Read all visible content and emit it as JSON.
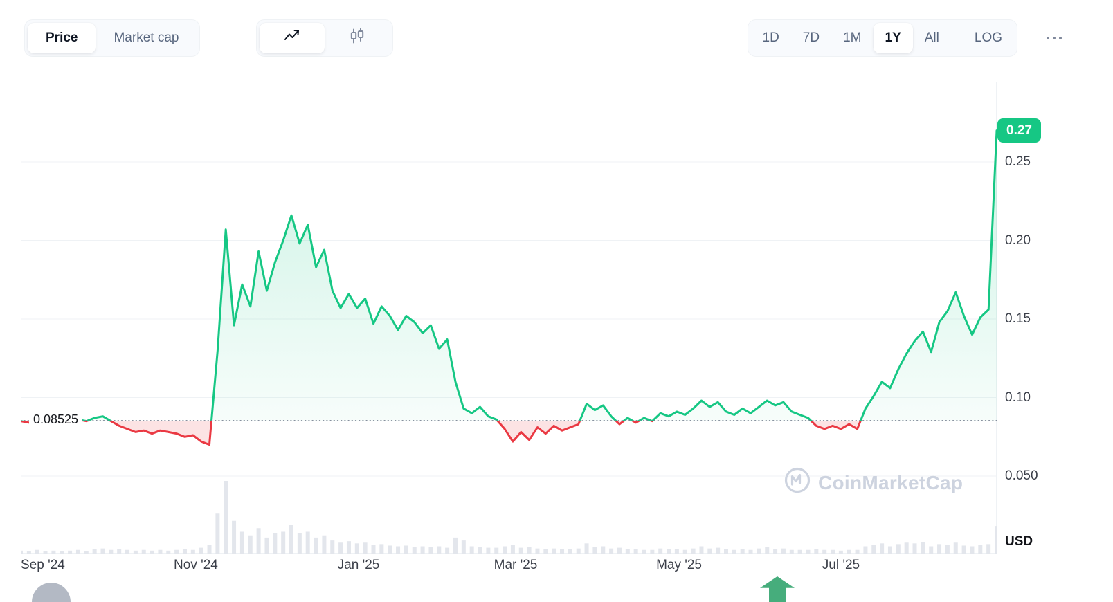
{
  "toolbar": {
    "metric_tabs": {
      "price": "Price",
      "market_cap": "Market cap"
    },
    "range_tabs": {
      "d1": "1D",
      "d7": "7D",
      "m1": "1M",
      "y1": "1Y",
      "all": "All",
      "log": "LOG"
    },
    "icons": {
      "chart_type_selected": "line-chart-icon",
      "chart_type_alt": "candlestick-icon",
      "more": "ellipsis-icon"
    }
  },
  "watermark": {
    "text": "CoinMarketCap"
  },
  "chart_data": {
    "type": "line",
    "unit_label": "USD",
    "current": {
      "label": "0.27",
      "value": 0.27
    },
    "baseline": {
      "label": "0.08525",
      "value": 0.08525
    },
    "ylim": [
      0.05,
      0.3
    ],
    "y_ticks": [
      {
        "label": "0.25",
        "value": 0.25
      },
      {
        "label": "0.20",
        "value": 0.2
      },
      {
        "label": "0.15",
        "value": 0.15
      },
      {
        "label": "0.10",
        "value": 0.1
      },
      {
        "label": "0.050",
        "value": 0.05
      }
    ],
    "x_ticks": [
      {
        "label": "Sep '24",
        "pos": 0
      },
      {
        "label": "Nov '24",
        "pos": 0.1794
      },
      {
        "label": "Jan '25",
        "pos": 0.3461
      },
      {
        "label": "Mar '25",
        "pos": 0.5071
      },
      {
        "label": "May '25",
        "pos": 0.6745
      },
      {
        "label": "Jul '25",
        "pos": 0.8404
      }
    ],
    "prices": [
      0.085,
      0.084,
      0.083,
      0.084,
      0.085,
      0.084,
      0.085,
      0.086,
      0.085,
      0.087,
      0.088,
      0.085,
      0.082,
      0.08,
      0.078,
      0.079,
      0.077,
      0.079,
      0.078,
      0.077,
      0.075,
      0.076,
      0.072,
      0.07,
      0.13,
      0.207,
      0.146,
      0.172,
      0.158,
      0.193,
      0.168,
      0.186,
      0.2,
      0.216,
      0.198,
      0.21,
      0.183,
      0.194,
      0.168,
      0.157,
      0.166,
      0.157,
      0.163,
      0.147,
      0.158,
      0.152,
      0.143,
      0.152,
      0.148,
      0.141,
      0.146,
      0.131,
      0.137,
      0.11,
      0.093,
      0.09,
      0.094,
      0.088,
      0.086,
      0.08,
      0.072,
      0.078,
      0.073,
      0.081,
      0.077,
      0.082,
      0.079,
      0.081,
      0.083,
      0.096,
      0.092,
      0.095,
      0.088,
      0.083,
      0.087,
      0.084,
      0.087,
      0.085,
      0.09,
      0.088,
      0.091,
      0.089,
      0.093,
      0.098,
      0.094,
      0.097,
      0.091,
      0.089,
      0.093,
      0.09,
      0.094,
      0.098,
      0.095,
      0.097,
      0.091,
      0.089,
      0.087,
      0.082,
      0.08,
      0.082,
      0.08,
      0.083,
      0.08,
      0.093,
      0.101,
      0.11,
      0.106,
      0.118,
      0.128,
      0.136,
      0.142,
      0.129,
      0.148,
      0.155,
      0.167,
      0.152,
      0.14,
      0.151,
      0.156,
      0.27
    ],
    "volume_relative": [
      0.04,
      0.03,
      0.05,
      0.03,
      0.04,
      0.03,
      0.04,
      0.05,
      0.03,
      0.06,
      0.07,
      0.05,
      0.06,
      0.05,
      0.04,
      0.05,
      0.04,
      0.05,
      0.04,
      0.05,
      0.06,
      0.05,
      0.08,
      0.12,
      0.55,
      1.0,
      0.45,
      0.3,
      0.25,
      0.35,
      0.22,
      0.28,
      0.3,
      0.4,
      0.28,
      0.3,
      0.22,
      0.25,
      0.18,
      0.15,
      0.17,
      0.14,
      0.15,
      0.12,
      0.13,
      0.11,
      0.1,
      0.11,
      0.09,
      0.1,
      0.09,
      0.1,
      0.08,
      0.22,
      0.18,
      0.1,
      0.09,
      0.08,
      0.08,
      0.1,
      0.12,
      0.08,
      0.09,
      0.07,
      0.06,
      0.07,
      0.06,
      0.06,
      0.07,
      0.14,
      0.09,
      0.1,
      0.07,
      0.08,
      0.06,
      0.06,
      0.05,
      0.05,
      0.07,
      0.06,
      0.06,
      0.05,
      0.07,
      0.1,
      0.07,
      0.08,
      0.06,
      0.05,
      0.06,
      0.05,
      0.07,
      0.09,
      0.06,
      0.07,
      0.05,
      0.05,
      0.05,
      0.06,
      0.05,
      0.05,
      0.04,
      0.05,
      0.05,
      0.1,
      0.12,
      0.14,
      0.1,
      0.13,
      0.15,
      0.14,
      0.16,
      0.1,
      0.13,
      0.12,
      0.15,
      0.11,
      0.1,
      0.12,
      0.13,
      0.38
    ],
    "colors": {
      "up": "#16c784",
      "down": "#ea3943",
      "up_fill_top": "rgba(22,199,132,0.22)",
      "up_fill_bottom": "rgba(22,199,132,0.02)",
      "down_fill": "rgba(234,57,67,0.14)",
      "grid": "#eff2f5",
      "baseline": "#757e8f",
      "volume": "#e3e6ec",
      "badge_bg": "#16c784",
      "badge_text": "#ffffff"
    }
  }
}
